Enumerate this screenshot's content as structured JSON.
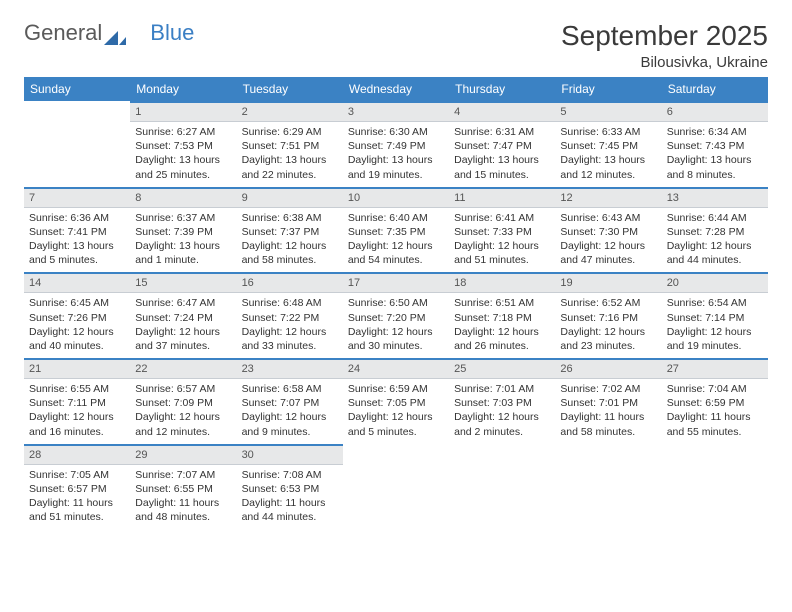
{
  "logo": {
    "text1": "General",
    "text2": "Blue",
    "color_gray": "#5a5a5a",
    "color_blue": "#3b7fc4"
  },
  "header": {
    "month_title": "September 2025",
    "location": "Bilousivka, Ukraine"
  },
  "colors": {
    "header_bg": "#3b82c4",
    "header_text": "#ffffff",
    "daynum_bg": "#e7e8e9",
    "daynum_text": "#555555",
    "week_divider": "#3b82c4",
    "cell_border": "#c8cdd3",
    "body_text": "#333333",
    "page_bg": "#ffffff"
  },
  "typography": {
    "month_title_size_pt": 21,
    "location_size_pt": 11,
    "dayheader_size_pt": 9,
    "daynum_size_pt": 8,
    "body_size_pt": 8
  },
  "day_headers": [
    "Sunday",
    "Monday",
    "Tuesday",
    "Wednesday",
    "Thursday",
    "Friday",
    "Saturday"
  ],
  "weeks": [
    [
      null,
      {
        "n": "1",
        "sunrise": "Sunrise: 6:27 AM",
        "sunset": "Sunset: 7:53 PM",
        "daylight": "Daylight: 13 hours and 25 minutes."
      },
      {
        "n": "2",
        "sunrise": "Sunrise: 6:29 AM",
        "sunset": "Sunset: 7:51 PM",
        "daylight": "Daylight: 13 hours and 22 minutes."
      },
      {
        "n": "3",
        "sunrise": "Sunrise: 6:30 AM",
        "sunset": "Sunset: 7:49 PM",
        "daylight": "Daylight: 13 hours and 19 minutes."
      },
      {
        "n": "4",
        "sunrise": "Sunrise: 6:31 AM",
        "sunset": "Sunset: 7:47 PM",
        "daylight": "Daylight: 13 hours and 15 minutes."
      },
      {
        "n": "5",
        "sunrise": "Sunrise: 6:33 AM",
        "sunset": "Sunset: 7:45 PM",
        "daylight": "Daylight: 13 hours and 12 minutes."
      },
      {
        "n": "6",
        "sunrise": "Sunrise: 6:34 AM",
        "sunset": "Sunset: 7:43 PM",
        "daylight": "Daylight: 13 hours and 8 minutes."
      }
    ],
    [
      {
        "n": "7",
        "sunrise": "Sunrise: 6:36 AM",
        "sunset": "Sunset: 7:41 PM",
        "daylight": "Daylight: 13 hours and 5 minutes."
      },
      {
        "n": "8",
        "sunrise": "Sunrise: 6:37 AM",
        "sunset": "Sunset: 7:39 PM",
        "daylight": "Daylight: 13 hours and 1 minute."
      },
      {
        "n": "9",
        "sunrise": "Sunrise: 6:38 AM",
        "sunset": "Sunset: 7:37 PM",
        "daylight": "Daylight: 12 hours and 58 minutes."
      },
      {
        "n": "10",
        "sunrise": "Sunrise: 6:40 AM",
        "sunset": "Sunset: 7:35 PM",
        "daylight": "Daylight: 12 hours and 54 minutes."
      },
      {
        "n": "11",
        "sunrise": "Sunrise: 6:41 AM",
        "sunset": "Sunset: 7:33 PM",
        "daylight": "Daylight: 12 hours and 51 minutes."
      },
      {
        "n": "12",
        "sunrise": "Sunrise: 6:43 AM",
        "sunset": "Sunset: 7:30 PM",
        "daylight": "Daylight: 12 hours and 47 minutes."
      },
      {
        "n": "13",
        "sunrise": "Sunrise: 6:44 AM",
        "sunset": "Sunset: 7:28 PM",
        "daylight": "Daylight: 12 hours and 44 minutes."
      }
    ],
    [
      {
        "n": "14",
        "sunrise": "Sunrise: 6:45 AM",
        "sunset": "Sunset: 7:26 PM",
        "daylight": "Daylight: 12 hours and 40 minutes."
      },
      {
        "n": "15",
        "sunrise": "Sunrise: 6:47 AM",
        "sunset": "Sunset: 7:24 PM",
        "daylight": "Daylight: 12 hours and 37 minutes."
      },
      {
        "n": "16",
        "sunrise": "Sunrise: 6:48 AM",
        "sunset": "Sunset: 7:22 PM",
        "daylight": "Daylight: 12 hours and 33 minutes."
      },
      {
        "n": "17",
        "sunrise": "Sunrise: 6:50 AM",
        "sunset": "Sunset: 7:20 PM",
        "daylight": "Daylight: 12 hours and 30 minutes."
      },
      {
        "n": "18",
        "sunrise": "Sunrise: 6:51 AM",
        "sunset": "Sunset: 7:18 PM",
        "daylight": "Daylight: 12 hours and 26 minutes."
      },
      {
        "n": "19",
        "sunrise": "Sunrise: 6:52 AM",
        "sunset": "Sunset: 7:16 PM",
        "daylight": "Daylight: 12 hours and 23 minutes."
      },
      {
        "n": "20",
        "sunrise": "Sunrise: 6:54 AM",
        "sunset": "Sunset: 7:14 PM",
        "daylight": "Daylight: 12 hours and 19 minutes."
      }
    ],
    [
      {
        "n": "21",
        "sunrise": "Sunrise: 6:55 AM",
        "sunset": "Sunset: 7:11 PM",
        "daylight": "Daylight: 12 hours and 16 minutes."
      },
      {
        "n": "22",
        "sunrise": "Sunrise: 6:57 AM",
        "sunset": "Sunset: 7:09 PM",
        "daylight": "Daylight: 12 hours and 12 minutes."
      },
      {
        "n": "23",
        "sunrise": "Sunrise: 6:58 AM",
        "sunset": "Sunset: 7:07 PM",
        "daylight": "Daylight: 12 hours and 9 minutes."
      },
      {
        "n": "24",
        "sunrise": "Sunrise: 6:59 AM",
        "sunset": "Sunset: 7:05 PM",
        "daylight": "Daylight: 12 hours and 5 minutes."
      },
      {
        "n": "25",
        "sunrise": "Sunrise: 7:01 AM",
        "sunset": "Sunset: 7:03 PM",
        "daylight": "Daylight: 12 hours and 2 minutes."
      },
      {
        "n": "26",
        "sunrise": "Sunrise: 7:02 AM",
        "sunset": "Sunset: 7:01 PM",
        "daylight": "Daylight: 11 hours and 58 minutes."
      },
      {
        "n": "27",
        "sunrise": "Sunrise: 7:04 AM",
        "sunset": "Sunset: 6:59 PM",
        "daylight": "Daylight: 11 hours and 55 minutes."
      }
    ],
    [
      {
        "n": "28",
        "sunrise": "Sunrise: 7:05 AM",
        "sunset": "Sunset: 6:57 PM",
        "daylight": "Daylight: 11 hours and 51 minutes."
      },
      {
        "n": "29",
        "sunrise": "Sunrise: 7:07 AM",
        "sunset": "Sunset: 6:55 PM",
        "daylight": "Daylight: 11 hours and 48 minutes."
      },
      {
        "n": "30",
        "sunrise": "Sunrise: 7:08 AM",
        "sunset": "Sunset: 6:53 PM",
        "daylight": "Daylight: 11 hours and 44 minutes."
      },
      null,
      null,
      null,
      null
    ]
  ]
}
